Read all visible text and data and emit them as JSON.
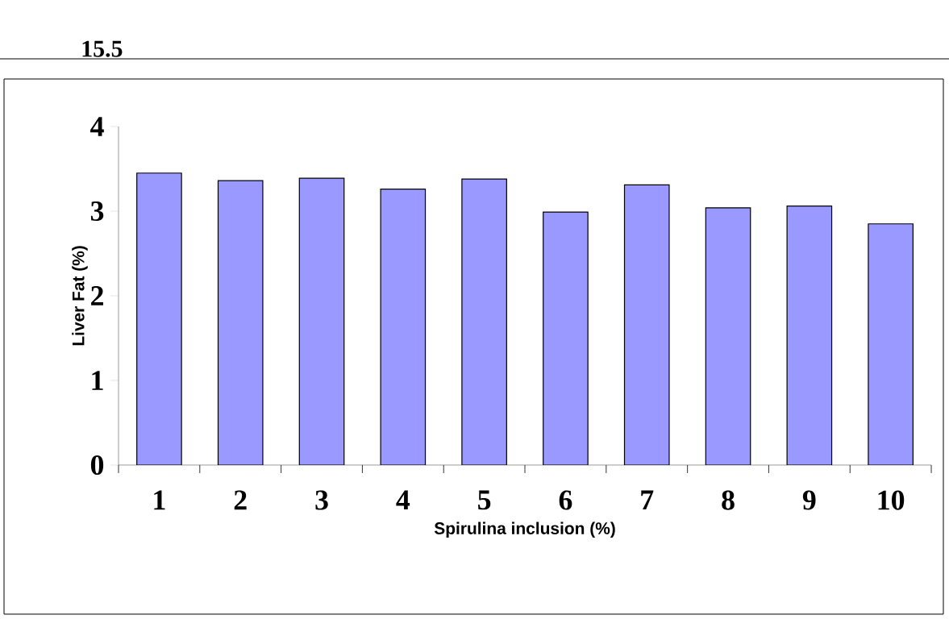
{
  "chart_data": {
    "type": "bar",
    "xlabel": "Spirulina inclusion (%)",
    "ylabel": "Liver Fat (%)",
    "categories": [
      "1",
      "2",
      "3",
      "4",
      "5",
      "6",
      "7",
      "8",
      "9",
      "10"
    ],
    "values": [
      3.45,
      3.36,
      3.39,
      3.26,
      3.38,
      2.99,
      3.31,
      3.04,
      3.06,
      2.85
    ],
    "color": "#9999ff",
    "ylim": [
      0,
      4
    ],
    "yticks": [
      0,
      1,
      2,
      3,
      4
    ],
    "annotations": [
      "15.5"
    ]
  }
}
